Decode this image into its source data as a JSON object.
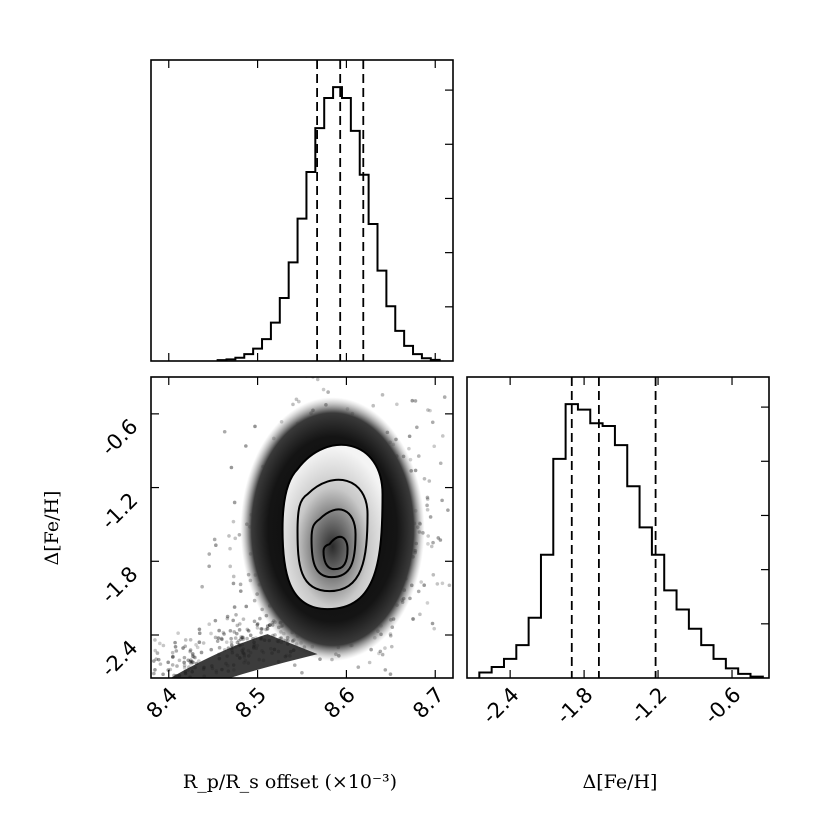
{
  "chart_data": [
    {
      "type": "histogram",
      "panel": "top-left marginal",
      "xlim": [
        8.38,
        8.72
      ],
      "x": [
        8.46,
        8.47,
        8.48,
        8.49,
        8.5,
        8.51,
        8.52,
        8.53,
        8.54,
        8.55,
        8.56,
        8.57,
        8.58,
        8.59,
        8.6,
        8.61,
        8.62,
        8.63,
        8.64,
        8.65,
        8.66,
        8.67,
        8.68,
        8.69,
        8.7
      ],
      "values": [
        0.003,
        0.006,
        0.012,
        0.025,
        0.045,
        0.08,
        0.14,
        0.23,
        0.36,
        0.52,
        0.69,
        0.85,
        0.96,
        1.0,
        0.96,
        0.84,
        0.68,
        0.5,
        0.33,
        0.2,
        0.11,
        0.055,
        0.025,
        0.01,
        0.004
      ],
      "quantiles": [
        8.567,
        8.593,
        8.619
      ]
    },
    {
      "type": "scatter",
      "panel": "bottom-left 2D density",
      "xlim": [
        8.38,
        8.72
      ],
      "ylim": [
        -2.75,
        -0.3
      ],
      "yticks": [
        "-0.6",
        "-1.2",
        "-1.8",
        "-2.4"
      ],
      "xticks": [
        "8.4",
        "8.5",
        "8.6",
        "8.7"
      ],
      "ylabel": "Δ[Fe/H]",
      "xlabel": "R_p/R_s offset (×10⁻³)",
      "contour_levels": 4
    },
    {
      "type": "histogram",
      "panel": "bottom-right marginal",
      "xlim": [
        -2.75,
        -0.3
      ],
      "xticks": [
        "-2.4",
        "-1.8",
        "-1.2",
        "-0.6"
      ],
      "xlabel": "Δ[Fe/H]",
      "x": [
        -2.6,
        -2.5,
        -2.4,
        -2.3,
        -2.2,
        -2.1,
        -2.0,
        -1.9,
        -1.8,
        -1.7,
        -1.6,
        -1.5,
        -1.4,
        -1.3,
        -1.2,
        -1.1,
        -1.0,
        -0.9,
        -0.8,
        -0.7,
        -0.6,
        -0.5,
        -0.4
      ],
      "values": [
        0.02,
        0.04,
        0.07,
        0.12,
        0.22,
        0.45,
        0.8,
        1.0,
        0.98,
        0.93,
        0.92,
        0.85,
        0.7,
        0.55,
        0.45,
        0.32,
        0.25,
        0.18,
        0.12,
        0.07,
        0.035,
        0.015,
        0.005
      ],
      "quantiles": [
        -1.9,
        -1.68,
        -1.22
      ]
    }
  ],
  "labels": {
    "bottom_left_xlabel": "R_p/R_s offset (×10⁻³)",
    "bottom_left_ylabel": "Δ[Fe/H]",
    "bottom_right_xlabel": "Δ[Fe/H]"
  }
}
